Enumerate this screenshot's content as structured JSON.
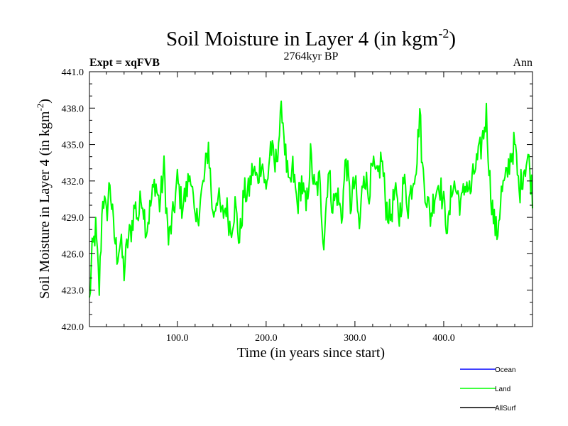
{
  "chart_data": {
    "type": "line",
    "title": {
      "main": "Soil Moisture in Layer 4 (in kgm",
      "sup": "-2",
      "close": ")"
    },
    "subtitle_left": "Expt = xqFVB",
    "subtitle_center": "2764kyr BP",
    "subtitle_right": "Ann",
    "ylabel": {
      "main": "Soil Moisture in Layer 4 (in kgm",
      "sup": "-2",
      "close": ")"
    },
    "xlabel": "Time (in years since start)",
    "xlim": [
      1,
      500
    ],
    "ylim": [
      420,
      441
    ],
    "xticks": [
      100,
      200,
      300,
      400
    ],
    "xtick_labels": [
      "100.0",
      "200.0",
      "300.0",
      "400.0"
    ],
    "yticks": [
      420,
      423,
      426,
      429,
      432,
      435,
      438,
      441
    ],
    "ytick_labels": [
      "420.0",
      "423.0",
      "426.0",
      "429.0",
      "432.0",
      "435.0",
      "438.0",
      "441.0"
    ],
    "legend_position": "bottom-right",
    "series": [
      {
        "name": "Ocean",
        "color": "#0000ff",
        "visible": false
      },
      {
        "name": "Land",
        "color": "#00ff00",
        "visible": true,
        "anchors": [
          [
            1,
            422
          ],
          [
            4,
            426
          ],
          [
            8,
            428
          ],
          [
            12,
            423
          ],
          [
            16,
            431
          ],
          [
            20,
            429
          ],
          [
            24,
            432
          ],
          [
            28,
            428
          ],
          [
            32,
            426
          ],
          [
            36,
            427
          ],
          [
            40,
            424.5
          ],
          [
            44,
            427
          ],
          [
            48,
            428
          ],
          [
            52,
            430
          ],
          [
            56,
            429
          ],
          [
            60,
            431
          ],
          [
            65,
            428
          ],
          [
            70,
            430
          ],
          [
            75,
            432
          ],
          [
            80,
            430
          ],
          [
            85,
            433
          ],
          [
            90,
            427
          ],
          [
            95,
            429
          ],
          [
            100,
            432
          ],
          [
            105,
            430
          ],
          [
            110,
            431
          ],
          [
            115,
            433
          ],
          [
            120,
            428
          ],
          [
            125,
            430
          ],
          [
            130,
            432
          ],
          [
            135,
            435
          ],
          [
            140,
            429
          ],
          [
            145,
            431
          ],
          [
            150,
            429
          ],
          [
            155,
            430
          ],
          [
            160,
            428
          ],
          [
            165,
            430
          ],
          [
            170,
            427
          ],
          [
            175,
            431
          ],
          [
            180,
            431
          ],
          [
            185,
            433
          ],
          [
            190,
            432
          ],
          [
            195,
            434
          ],
          [
            200,
            431
          ],
          [
            205,
            435
          ],
          [
            210,
            433
          ],
          [
            215,
            436
          ],
          [
            218,
            438
          ],
          [
            222,
            434
          ],
          [
            226,
            431
          ],
          [
            230,
            433
          ],
          [
            235,
            430
          ],
          [
            240,
            432
          ],
          [
            245,
            429.5
          ],
          [
            250,
            434
          ],
          [
            255,
            431
          ],
          [
            260,
            432
          ],
          [
            265,
            427
          ],
          [
            270,
            433
          ],
          [
            275,
            430
          ],
          [
            280,
            431
          ],
          [
            285,
            429
          ],
          [
            290,
            434
          ],
          [
            295,
            430
          ],
          [
            300,
            432
          ],
          [
            305,
            428
          ],
          [
            310,
            433
          ],
          [
            315,
            431
          ],
          [
            320,
            433
          ],
          [
            325,
            432
          ],
          [
            330,
            434
          ],
          [
            335,
            430
          ],
          [
            340,
            429
          ],
          [
            345,
            431
          ],
          [
            350,
            429
          ],
          [
            355,
            432
          ],
          [
            360,
            430
          ],
          [
            365,
            432
          ],
          [
            370,
            434
          ],
          [
            373,
            438
          ],
          [
            376,
            433
          ],
          [
            380,
            431
          ],
          [
            385,
            429
          ],
          [
            390,
            431
          ],
          [
            395,
            432
          ],
          [
            400,
            430
          ],
          [
            405,
            428
          ],
          [
            410,
            432
          ],
          [
            415,
            431
          ],
          [
            420,
            430
          ],
          [
            425,
            432
          ],
          [
            430,
            431
          ],
          [
            435,
            433
          ],
          [
            440,
            434
          ],
          [
            445,
            436
          ],
          [
            448,
            437.5
          ],
          [
            452,
            432
          ],
          [
            456,
            429
          ],
          [
            460,
            427.5
          ],
          [
            465,
            431
          ],
          [
            470,
            432
          ],
          [
            475,
            434
          ],
          [
            480,
            435
          ],
          [
            485,
            431
          ],
          [
            490,
            433
          ],
          [
            495,
            434
          ],
          [
            500,
            431
          ]
        ]
      },
      {
        "name": "AllSurf",
        "color": "#000000",
        "visible": false
      }
    ]
  }
}
